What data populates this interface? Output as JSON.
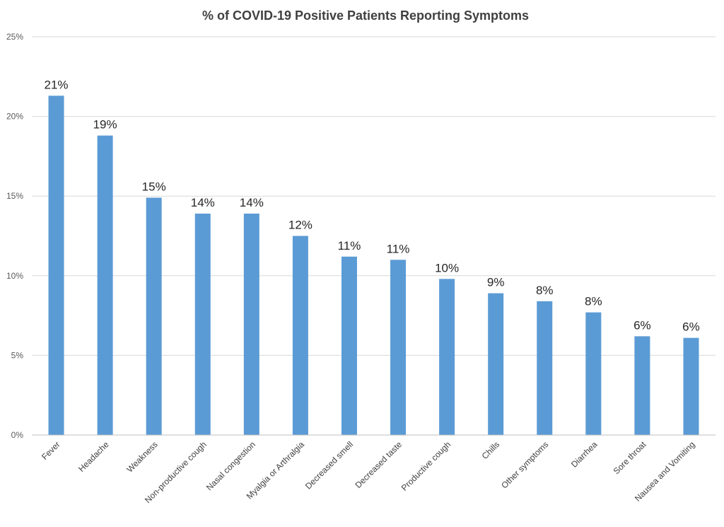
{
  "chart_data": {
    "type": "bar",
    "title": "% of COVID-19 Positive Patients Reporting Symptoms",
    "categories": [
      "Fever",
      "Headache",
      "Weakness",
      "Non-productive cough",
      "Nasal congestion",
      "Myalgia or Arthralgia",
      "Decreased smell",
      "Decreased taste",
      "Productive cough",
      "Chills",
      "Other symptoms",
      "Diarrhea",
      "Sore throat",
      "Nausea and Vomiting"
    ],
    "values": [
      21.3,
      18.8,
      14.9,
      13.9,
      13.9,
      12.5,
      11.2,
      11.0,
      9.8,
      8.9,
      8.4,
      7.7,
      6.2,
      6.1
    ],
    "data_labels": [
      "21%",
      "19%",
      "15%",
      "14%",
      "14%",
      "12%",
      "11%",
      "11%",
      "10%",
      "9%",
      "8%",
      "8%",
      "6%",
      "6%"
    ],
    "y_ticks": [
      "0%",
      "5%",
      "10%",
      "15%",
      "20%",
      "25%"
    ],
    "ylim": [
      0,
      25
    ],
    "xlabel": "",
    "ylabel": "",
    "grid": true,
    "legend": "none",
    "bar_color": "#5b9bd5"
  }
}
